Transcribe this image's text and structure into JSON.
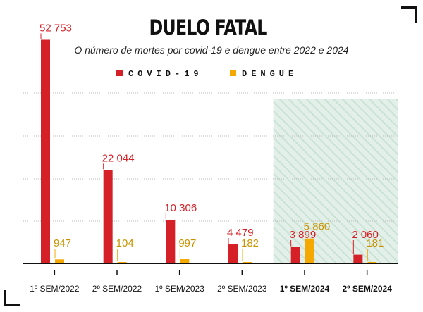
{
  "chart_data": {
    "type": "bar",
    "title": "DUELO FATAL",
    "subtitle": "O número de mortes por covid-19 e dengue entre 2022 e 2024",
    "categories": [
      "1º SEM/2022",
      "2º SEM/2022",
      "1º SEM/2023",
      "2º SEM/2023",
      "1º SEM/2024",
      "2º SEM/2024"
    ],
    "highlighted_categories": [
      "1º SEM/2024",
      "2º SEM/2024"
    ],
    "series": [
      {
        "name": "COVID-19",
        "color": "#d62027",
        "values": [
          52753,
          22044,
          10306,
          4479,
          3899,
          2060
        ],
        "labels": [
          "52 753",
          "22 044",
          "10 306",
          "4 479",
          "3 899",
          "2 060"
        ]
      },
      {
        "name": "DENGUE",
        "color": "#f5a800",
        "values": [
          947,
          104,
          997,
          182,
          5860,
          181
        ],
        "labels": [
          "947",
          "104",
          "997",
          "182",
          "5 860",
          "181"
        ]
      }
    ],
    "xlabel": "",
    "ylabel": "",
    "ylim": [
      0,
      53000
    ],
    "grid": true,
    "legend": "top-center"
  },
  "colors": {
    "covid": "#d62027",
    "dengue": "#f5a800",
    "dengue_label": "#c99400",
    "highlight_band": "#d6ebe0"
  }
}
